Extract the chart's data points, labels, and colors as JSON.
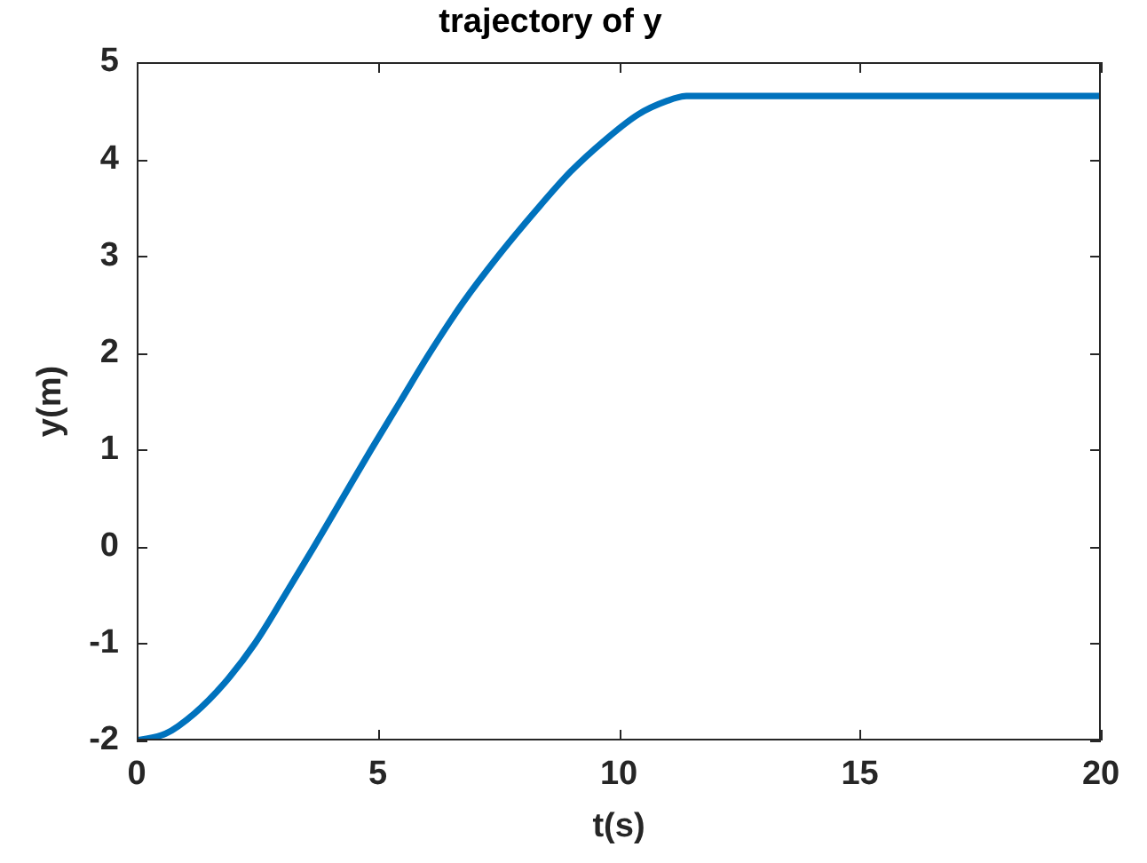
{
  "chart_data": {
    "type": "line",
    "title": "trajectory of y",
    "xlabel": "t(s)",
    "ylabel": "y(m)",
    "x": [
      0,
      0.6,
      1.2,
      1.8,
      2.45,
      3.05,
      3.68,
      4.27,
      4.86,
      5.47,
      6.08,
      6.77,
      7.5,
      8.25,
      9,
      9.7,
      10.4,
      11,
      11.4,
      20
    ],
    "series": [
      {
        "color": "#0072bd",
        "values": [
          -2,
          -1.93,
          -1.72,
          -1.42,
          -1,
          -0.52,
          0,
          0.5,
          1,
          1.5,
          2,
          2.52,
          3,
          3.45,
          3.87,
          4.19,
          4.46,
          4.6,
          4.65,
          4.65
        ]
      }
    ],
    "xlim": [
      0,
      20
    ],
    "ylim": [
      -2,
      5
    ],
    "xticks": [
      0,
      5,
      10,
      15,
      20
    ],
    "yticks": [
      -2,
      -1,
      0,
      1,
      2,
      3,
      4,
      5
    ],
    "line_style": "solid"
  }
}
